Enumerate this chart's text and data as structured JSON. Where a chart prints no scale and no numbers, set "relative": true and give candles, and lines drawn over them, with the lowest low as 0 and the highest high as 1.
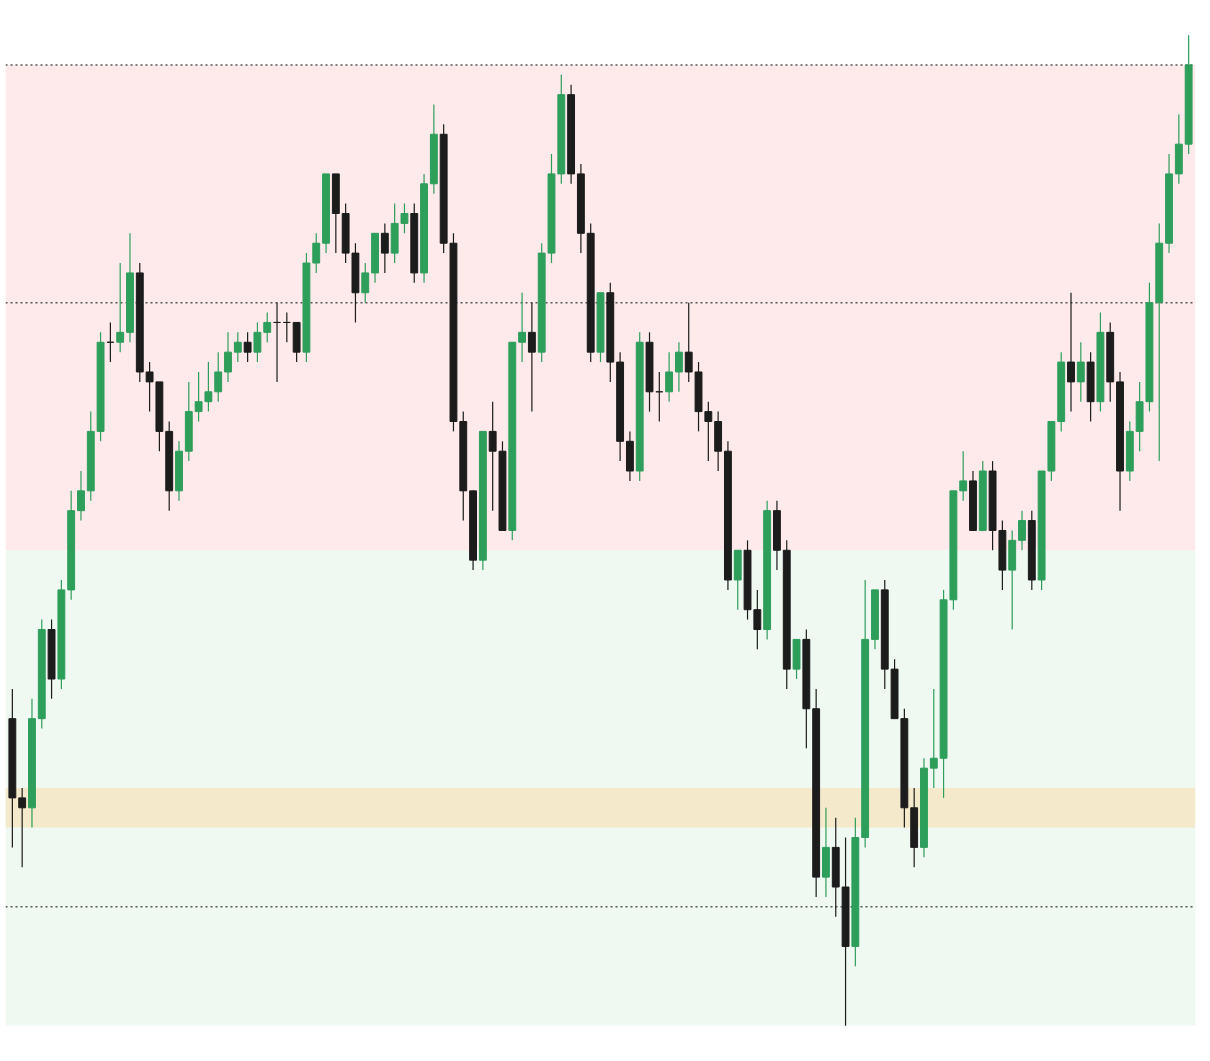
{
  "chart_data": {
    "type": "candlestick",
    "relative": true,
    "categories": [
      null,
      null,
      null,
      null,
      null,
      null,
      null,
      null,
      null,
      null,
      null,
      null,
      null,
      null,
      null,
      null,
      null,
      null,
      null,
      null,
      null,
      null,
      null,
      null,
      null,
      null,
      null,
      null,
      null,
      null,
      null,
      null,
      null,
      null,
      null,
      null,
      null,
      null,
      null,
      null,
      null,
      null,
      null,
      null,
      null,
      null,
      null,
      null,
      null,
      null,
      null,
      null,
      null,
      null,
      null,
      null,
      null,
      null,
      null,
      null,
      null,
      null,
      null,
      null,
      null,
      null,
      null,
      null,
      null,
      null,
      null,
      null,
      null,
      null,
      null,
      null,
      null,
      null,
      null,
      null,
      null,
      null,
      null,
      null,
      null,
      null,
      null,
      null,
      null,
      null,
      null,
      null,
      null,
      null,
      null,
      null,
      null,
      null,
      null,
      null,
      null,
      null,
      null,
      null,
      null,
      null,
      null,
      null,
      null,
      null,
      null,
      null,
      null,
      null,
      null,
      null,
      null,
      null,
      null,
      null,
      null
    ],
    "ohlc": [
      [
        0.31,
        0.34,
        0.18,
        0.23
      ],
      [
        0.23,
        0.24,
        0.16,
        0.22
      ],
      [
        0.22,
        0.33,
        0.2,
        0.31
      ],
      [
        0.31,
        0.41,
        0.3,
        0.4
      ],
      [
        0.4,
        0.41,
        0.33,
        0.35
      ],
      [
        0.35,
        0.45,
        0.34,
        0.44
      ],
      [
        0.44,
        0.54,
        0.43,
        0.52
      ],
      [
        0.52,
        0.56,
        0.51,
        0.54
      ],
      [
        0.54,
        0.62,
        0.53,
        0.6
      ],
      [
        0.6,
        0.7,
        0.59,
        0.69
      ],
      [
        0.69,
        0.71,
        0.67,
        0.69
      ],
      [
        0.69,
        0.77,
        0.68,
        0.7
      ],
      [
        0.7,
        0.8,
        0.69,
        0.76
      ],
      [
        0.76,
        0.77,
        0.65,
        0.66
      ],
      [
        0.66,
        0.67,
        0.62,
        0.65
      ],
      [
        0.65,
        0.65,
        0.58,
        0.6
      ],
      [
        0.6,
        0.61,
        0.52,
        0.54
      ],
      [
        0.54,
        0.59,
        0.53,
        0.58
      ],
      [
        0.58,
        0.65,
        0.57,
        0.62
      ],
      [
        0.62,
        0.66,
        0.61,
        0.63
      ],
      [
        0.63,
        0.67,
        0.62,
        0.64
      ],
      [
        0.64,
        0.68,
        0.63,
        0.66
      ],
      [
        0.66,
        0.7,
        0.65,
        0.68
      ],
      [
        0.68,
        0.7,
        0.67,
        0.69
      ],
      [
        0.69,
        0.7,
        0.67,
        0.68
      ],
      [
        0.68,
        0.71,
        0.67,
        0.7
      ],
      [
        0.7,
        0.72,
        0.69,
        0.71
      ],
      [
        0.71,
        0.73,
        0.65,
        0.71
      ],
      [
        0.71,
        0.72,
        0.69,
        0.71
      ],
      [
        0.71,
        0.71,
        0.67,
        0.68
      ],
      [
        0.68,
        0.78,
        0.67,
        0.77
      ],
      [
        0.77,
        0.8,
        0.76,
        0.79
      ],
      [
        0.79,
        0.86,
        0.78,
        0.86
      ],
      [
        0.86,
        0.86,
        0.78,
        0.82
      ],
      [
        0.82,
        0.83,
        0.77,
        0.78
      ],
      [
        0.78,
        0.79,
        0.71,
        0.74
      ],
      [
        0.74,
        0.77,
        0.73,
        0.76
      ],
      [
        0.76,
        0.8,
        0.75,
        0.8
      ],
      [
        0.8,
        0.81,
        0.76,
        0.78
      ],
      [
        0.78,
        0.83,
        0.77,
        0.81
      ],
      [
        0.81,
        0.83,
        0.8,
        0.82
      ],
      [
        0.82,
        0.83,
        0.75,
        0.76
      ],
      [
        0.76,
        0.86,
        0.75,
        0.85
      ],
      [
        0.85,
        0.93,
        0.84,
        0.9
      ],
      [
        0.9,
        0.91,
        0.78,
        0.79
      ],
      [
        0.79,
        0.8,
        0.6,
        0.61
      ],
      [
        0.61,
        0.62,
        0.51,
        0.54
      ],
      [
        0.54,
        0.54,
        0.46,
        0.47
      ],
      [
        0.47,
        0.6,
        0.46,
        0.6
      ],
      [
        0.6,
        0.63,
        0.52,
        0.58
      ],
      [
        0.58,
        0.59,
        0.5,
        0.5
      ],
      [
        0.5,
        0.69,
        0.49,
        0.69
      ],
      [
        0.69,
        0.74,
        0.67,
        0.7
      ],
      [
        0.7,
        0.73,
        0.62,
        0.68
      ],
      [
        0.68,
        0.79,
        0.67,
        0.78
      ],
      [
        0.78,
        0.88,
        0.77,
        0.86
      ],
      [
        0.86,
        0.96,
        0.85,
        0.94
      ],
      [
        0.94,
        0.95,
        0.85,
        0.86
      ],
      [
        0.86,
        0.87,
        0.78,
        0.8
      ],
      [
        0.8,
        0.81,
        0.67,
        0.68
      ],
      [
        0.68,
        0.74,
        0.67,
        0.74
      ],
      [
        0.74,
        0.75,
        0.65,
        0.67
      ],
      [
        0.67,
        0.68,
        0.57,
        0.59
      ],
      [
        0.59,
        0.6,
        0.55,
        0.56
      ],
      [
        0.56,
        0.7,
        0.55,
        0.69
      ],
      [
        0.69,
        0.7,
        0.62,
        0.64
      ],
      [
        0.64,
        0.66,
        0.61,
        0.64
      ],
      [
        0.64,
        0.68,
        0.63,
        0.66
      ],
      [
        0.66,
        0.69,
        0.64,
        0.68
      ],
      [
        0.68,
        0.73,
        0.65,
        0.66
      ],
      [
        0.66,
        0.67,
        0.6,
        0.62
      ],
      [
        0.62,
        0.63,
        0.57,
        0.61
      ],
      [
        0.61,
        0.62,
        0.56,
        0.58
      ],
      [
        0.58,
        0.59,
        0.44,
        0.45
      ],
      [
        0.45,
        0.48,
        0.42,
        0.48
      ],
      [
        0.48,
        0.49,
        0.41,
        0.42
      ],
      [
        0.42,
        0.44,
        0.38,
        0.4
      ],
      [
        0.4,
        0.53,
        0.39,
        0.52
      ],
      [
        0.52,
        0.53,
        0.46,
        0.48
      ],
      [
        0.48,
        0.49,
        0.34,
        0.36
      ],
      [
        0.36,
        0.39,
        0.35,
        0.39
      ],
      [
        0.39,
        0.4,
        0.28,
        0.32
      ],
      [
        0.32,
        0.34,
        0.13,
        0.15
      ],
      [
        0.15,
        0.22,
        0.13,
        0.18
      ],
      [
        0.18,
        0.21,
        0.11,
        0.14
      ],
      [
        0.14,
        0.19,
        0.0,
        0.08
      ],
      [
        0.08,
        0.21,
        0.06,
        0.19
      ],
      [
        0.19,
        0.45,
        0.18,
        0.39
      ],
      [
        0.39,
        0.44,
        0.38,
        0.44
      ],
      [
        0.44,
        0.45,
        0.34,
        0.36
      ],
      [
        0.36,
        0.37,
        0.31,
        0.31
      ],
      [
        0.31,
        0.32,
        0.2,
        0.22
      ],
      [
        0.22,
        0.24,
        0.16,
        0.18
      ],
      [
        0.18,
        0.27,
        0.17,
        0.26
      ],
      [
        0.26,
        0.34,
        0.24,
        0.27
      ],
      [
        0.27,
        0.44,
        0.23,
        0.43
      ],
      [
        0.43,
        0.54,
        0.42,
        0.54
      ],
      [
        0.54,
        0.58,
        0.53,
        0.55
      ],
      [
        0.55,
        0.56,
        0.5,
        0.5
      ],
      [
        0.5,
        0.57,
        0.5,
        0.56
      ],
      [
        0.56,
        0.57,
        0.48,
        0.5
      ],
      [
        0.5,
        0.51,
        0.44,
        0.46
      ],
      [
        0.46,
        0.5,
        0.4,
        0.49
      ],
      [
        0.49,
        0.52,
        0.48,
        0.51
      ],
      [
        0.51,
        0.52,
        0.44,
        0.45
      ],
      [
        0.45,
        0.56,
        0.44,
        0.56
      ],
      [
        0.56,
        0.61,
        0.55,
        0.61
      ],
      [
        0.61,
        0.68,
        0.6,
        0.67
      ],
      [
        0.67,
        0.74,
        0.62,
        0.65
      ],
      [
        0.65,
        0.69,
        0.63,
        0.67
      ],
      [
        0.67,
        0.68,
        0.61,
        0.63
      ],
      [
        0.63,
        0.72,
        0.62,
        0.7
      ],
      [
        0.7,
        0.71,
        0.63,
        0.65
      ],
      [
        0.65,
        0.66,
        0.52,
        0.56
      ],
      [
        0.56,
        0.61,
        0.55,
        0.6
      ],
      [
        0.6,
        0.65,
        0.58,
        0.63
      ],
      [
        0.63,
        0.75,
        0.62,
        0.73
      ],
      [
        0.73,
        0.81,
        0.57,
        0.79
      ],
      [
        0.79,
        0.88,
        0.78,
        0.86
      ],
      [
        0.86,
        0.92,
        0.85,
        0.89
      ],
      [
        0.89,
        1.0,
        0.88,
        0.97
      ]
    ],
    "colors": [
      "#1c1c1c",
      "#1c1c1c",
      "#2e9e5b",
      "#2e9e5b",
      "#1c1c1c",
      "#2e9e5b",
      "#2e9e5b",
      "#2e9e5b",
      "#2e9e5b",
      "#2e9e5b",
      "#1c1c1c",
      "#2e9e5b",
      "#2e9e5b",
      "#1c1c1c",
      "#1c1c1c",
      "#1c1c1c",
      "#1c1c1c",
      "#2e9e5b",
      "#2e9e5b",
      "#2e9e5b",
      "#2e9e5b",
      "#2e9e5b",
      "#2e9e5b",
      "#2e9e5b",
      "#1c1c1c",
      "#2e9e5b",
      "#2e9e5b",
      "#1c1c1c",
      "#1c1c1c",
      "#1c1c1c",
      "#2e9e5b",
      "#2e9e5b",
      "#2e9e5b",
      "#1c1c1c",
      "#1c1c1c",
      "#1c1c1c",
      "#2e9e5b",
      "#2e9e5b",
      "#1c1c1c",
      "#2e9e5b",
      "#2e9e5b",
      "#1c1c1c",
      "#2e9e5b",
      "#2e9e5b",
      "#1c1c1c",
      "#1c1c1c",
      "#1c1c1c",
      "#1c1c1c",
      "#2e9e5b",
      "#1c1c1c",
      "#1c1c1c",
      "#2e9e5b",
      "#2e9e5b",
      "#1c1c1c",
      "#2e9e5b",
      "#2e9e5b",
      "#2e9e5b",
      "#1c1c1c",
      "#1c1c1c",
      "#1c1c1c",
      "#2e9e5b",
      "#1c1c1c",
      "#1c1c1c",
      "#1c1c1c",
      "#2e9e5b",
      "#1c1c1c",
      "#1c1c1c",
      "#2e9e5b",
      "#2e9e5b",
      "#1c1c1c",
      "#1c1c1c",
      "#1c1c1c",
      "#1c1c1c",
      "#1c1c1c",
      "#2e9e5b",
      "#1c1c1c",
      "#1c1c1c",
      "#2e9e5b",
      "#1c1c1c",
      "#1c1c1c",
      "#2e9e5b",
      "#1c1c1c",
      "#1c1c1c",
      "#2e9e5b",
      "#1c1c1c",
      "#1c1c1c",
      "#2e9e5b",
      "#2e9e5b",
      "#2e9e5b",
      "#1c1c1c",
      "#1c1c1c",
      "#1c1c1c",
      "#1c1c1c",
      "#2e9e5b",
      "#2e9e5b",
      "#2e9e5b",
      "#2e9e5b",
      "#2e9e5b",
      "#1c1c1c",
      "#2e9e5b",
      "#1c1c1c",
      "#1c1c1c",
      "#2e9e5b",
      "#2e9e5b",
      "#1c1c1c",
      "#2e9e5b",
      "#2e9e5b",
      "#2e9e5b",
      "#1c1c1c",
      "#2e9e5b",
      "#1c1c1c",
      "#2e9e5b",
      "#1c1c1c",
      "#1c1c1c",
      "#2e9e5b",
      "#2e9e5b",
      "#2e9e5b",
      "#2e9e5b",
      "#2e9e5b",
      "#2e9e5b",
      "#2e9e5b"
    ],
    "bands": [
      {
        "axis": "y",
        "from": 0.48,
        "to": 0.97,
        "color": "#fde3e3"
      },
      {
        "axis": "y",
        "from": 0.0,
        "to": 0.48,
        "color": "#ebf6ee"
      },
      {
        "axis": "y",
        "from": 0.2,
        "to": 0.24,
        "color": "#f6e4bd"
      }
    ],
    "ref_lines": [
      {
        "axis": "y",
        "value": 0.97,
        "color": "#555555",
        "line_style": "dotted"
      },
      {
        "axis": "y",
        "value": 0.73,
        "color": "#555555",
        "line_style": "dotted"
      },
      {
        "axis": "y",
        "value": 0.12,
        "color": "#555555",
        "line_style": "dotted"
      }
    ],
    "grid": false
  }
}
